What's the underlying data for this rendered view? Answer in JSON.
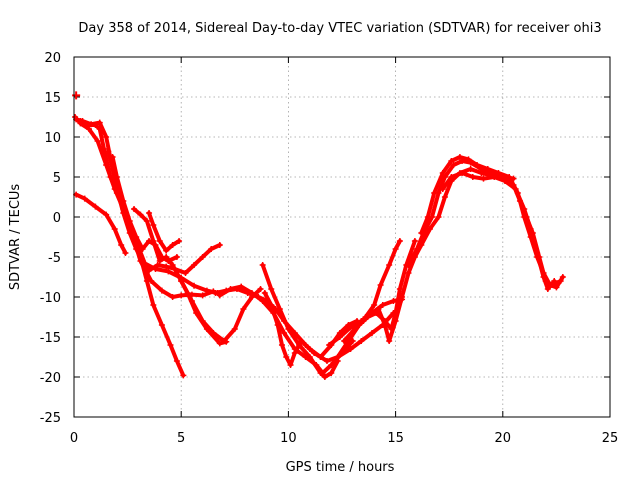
{
  "chart_data": {
    "type": "scatter",
    "title": "Day 358 of 2014, Sidereal Day-to-day VTEC variation (SDTVAR) for receiver ohi3",
    "xlabel": "GPS time / hours",
    "ylabel": "SDTVAR / TECUs",
    "xlim": [
      0,
      25
    ],
    "ylim": [
      -25,
      20
    ],
    "xticks": [
      0,
      5,
      10,
      15,
      20,
      25
    ],
    "yticks": [
      20,
      15,
      10,
      5,
      0,
      -5,
      -10,
      -15,
      -20,
      -25
    ],
    "xtick_labels": [
      "0",
      "5",
      "10",
      "15",
      "20",
      "25"
    ],
    "ytick_labels": [
      "20",
      "15",
      "10",
      "5",
      "0",
      "-5",
      "-10",
      "-15",
      "-20",
      "-25"
    ],
    "grid": true,
    "legend": "none",
    "marker_color": "#ff0000",
    "series": [
      {
        "name": "trace-1",
        "points": [
          [
            0.1,
            2.8
          ],
          [
            0.5,
            2.3
          ],
          [
            1.0,
            1.3
          ],
          [
            1.5,
            0.3
          ],
          [
            1.9,
            -1.5
          ],
          [
            2.2,
            -3.5
          ],
          [
            2.4,
            -4.5
          ]
        ]
      },
      {
        "name": "trace-2",
        "points": [
          [
            0.05,
            12.5
          ],
          [
            0.3,
            11.7
          ],
          [
            0.7,
            11.0
          ],
          [
            1.1,
            9.5
          ],
          [
            1.5,
            6.5
          ],
          [
            1.9,
            3.5
          ],
          [
            2.3,
            1.0
          ],
          [
            2.7,
            -2.0
          ],
          [
            3.1,
            -5.5
          ],
          [
            3.6,
            -8.0
          ],
          [
            4.1,
            -9.2
          ],
          [
            4.6,
            -10.0
          ],
          [
            5.0,
            -9.8
          ],
          [
            5.5,
            -9.7
          ],
          [
            6.0,
            -9.8
          ],
          [
            6.5,
            -9.3
          ]
        ]
      },
      {
        "name": "trace-3",
        "points": [
          [
            0.1,
            12.2
          ],
          [
            0.4,
            12.0
          ],
          [
            0.8,
            11.6
          ],
          [
            1.2,
            11.8
          ],
          [
            1.5,
            10.0
          ],
          [
            1.8,
            6.0
          ],
          [
            2.1,
            3.0
          ],
          [
            2.5,
            0.0
          ],
          [
            2.9,
            -3.0
          ],
          [
            3.3,
            -5.8
          ],
          [
            3.8,
            -6.5
          ],
          [
            4.4,
            -6.8
          ],
          [
            5.0,
            -7.6
          ],
          [
            5.6,
            -8.6
          ],
          [
            6.2,
            -9.2
          ],
          [
            6.7,
            -9.5
          ]
        ]
      },
      {
        "name": "trace-4",
        "points": [
          [
            0.3,
            12.0
          ],
          [
            0.6,
            11.5
          ],
          [
            1.0,
            11.5
          ],
          [
            1.2,
            11.0
          ],
          [
            1.4,
            8.5
          ],
          [
            1.7,
            5.0
          ],
          [
            2.0,
            3.0
          ],
          [
            2.4,
            0.5
          ],
          [
            2.8,
            -2.5
          ],
          [
            3.1,
            -5.0
          ],
          [
            3.4,
            -8.0
          ],
          [
            3.7,
            -11.0
          ],
          [
            4.1,
            -13.5
          ],
          [
            4.5,
            -16.0
          ],
          [
            4.8,
            -18.0
          ],
          [
            5.1,
            -19.8
          ]
        ]
      },
      {
        "name": "trace-5",
        "points": [
          [
            1.6,
            8.2
          ],
          [
            1.8,
            6.0
          ],
          [
            2.0,
            3.5
          ],
          [
            2.3,
            0.5
          ],
          [
            2.6,
            -2.0
          ],
          [
            2.9,
            -4.0
          ],
          [
            3.2,
            -5.5
          ],
          [
            3.5,
            -6.7
          ],
          [
            3.9,
            -6.0
          ],
          [
            4.3,
            -6.2
          ],
          [
            4.7,
            -6.5
          ],
          [
            5.2,
            -7.0
          ],
          [
            5.6,
            -6.0
          ],
          [
            6.0,
            -5.0
          ],
          [
            6.4,
            -4.0
          ],
          [
            6.8,
            -3.5
          ]
        ]
      },
      {
        "name": "trace-6",
        "points": [
          [
            1.8,
            7.5
          ],
          [
            2.0,
            5.0
          ],
          [
            2.3,
            2.0
          ],
          [
            2.6,
            -0.5
          ],
          [
            2.9,
            -2.5
          ],
          [
            3.2,
            -4.0
          ],
          [
            3.5,
            -3.0
          ],
          [
            3.8,
            -3.5
          ],
          [
            4.1,
            -5.0
          ],
          [
            4.4,
            -5.5
          ],
          [
            4.8,
            -5.0
          ]
        ]
      },
      {
        "name": "trace-7",
        "points": [
          [
            3.5,
            0.5
          ],
          [
            3.7,
            -1.0
          ],
          [
            4.0,
            -3.0
          ],
          [
            4.3,
            -4.2
          ],
          [
            4.6,
            -3.5
          ],
          [
            4.9,
            -3.0
          ]
        ]
      },
      {
        "name": "trace-8",
        "points": [
          [
            2.8,
            1.0
          ],
          [
            3.1,
            0.3
          ],
          [
            3.4,
            -0.5
          ],
          [
            3.7,
            -3.0
          ],
          [
            4.0,
            -5.5
          ],
          [
            4.3,
            -5.0
          ],
          [
            4.6,
            -6.0
          ],
          [
            5.0,
            -8.0
          ],
          [
            5.5,
            -10.5
          ],
          [
            6.0,
            -13.0
          ],
          [
            6.5,
            -14.5
          ],
          [
            7.0,
            -15.5
          ],
          [
            7.5,
            -14.0
          ],
          [
            7.9,
            -11.5
          ],
          [
            8.3,
            -10.0
          ],
          [
            8.7,
            -9.0
          ]
        ]
      },
      {
        "name": "trace-9",
        "points": [
          [
            5.0,
            -8.0
          ],
          [
            5.3,
            -9.5
          ],
          [
            5.7,
            -12.0
          ],
          [
            6.2,
            -14.0
          ],
          [
            6.8,
            -15.8
          ],
          [
            7.1,
            -15.6
          ]
        ]
      },
      {
        "name": "trace-10",
        "points": [
          [
            6.6,
            -9.5
          ],
          [
            7.1,
            -9.2
          ],
          [
            7.6,
            -9.0
          ],
          [
            8.1,
            -9.5
          ],
          [
            8.6,
            -10.0
          ],
          [
            9.0,
            -10.5
          ],
          [
            9.4,
            -11.5
          ],
          [
            9.8,
            -13.0
          ],
          [
            10.3,
            -14.5
          ],
          [
            10.8,
            -16.0
          ],
          [
            11.2,
            -17.0
          ],
          [
            11.5,
            -17.5
          ],
          [
            11.8,
            -18.0
          ],
          [
            12.3,
            -17.5
          ],
          [
            12.9,
            -16.5
          ],
          [
            13.4,
            -15.5
          ],
          [
            13.9,
            -14.5
          ],
          [
            14.4,
            -13.5
          ],
          [
            14.9,
            -12.0
          ]
        ]
      },
      {
        "name": "trace-11",
        "points": [
          [
            6.8,
            -9.8
          ],
          [
            7.3,
            -9.0
          ],
          [
            7.8,
            -8.7
          ],
          [
            8.3,
            -9.5
          ],
          [
            8.8,
            -10.5
          ],
          [
            9.3,
            -12.0
          ],
          [
            9.8,
            -14.5
          ],
          [
            10.3,
            -16.5
          ],
          [
            10.8,
            -17.5
          ],
          [
            11.3,
            -18.5
          ],
          [
            11.6,
            -19.5
          ],
          [
            12.0,
            -18.5
          ],
          [
            12.5,
            -17.0
          ],
          [
            13.0,
            -15.5
          ]
        ]
      },
      {
        "name": "trace-12",
        "points": [
          [
            8.8,
            -6.0
          ],
          [
            9.2,
            -9.0
          ],
          [
            9.6,
            -11.5
          ],
          [
            10.0,
            -14.0
          ],
          [
            10.5,
            -16.0
          ],
          [
            11.0,
            -17.5
          ],
          [
            11.5,
            -19.5
          ],
          [
            11.7,
            -20.0
          ],
          [
            12.0,
            -19.5
          ],
          [
            12.3,
            -18.0
          ]
        ]
      },
      {
        "name": "trace-13",
        "points": [
          [
            8.9,
            -9.5
          ],
          [
            9.2,
            -11.0
          ],
          [
            9.5,
            -13.5
          ],
          [
            9.7,
            -16.0
          ],
          [
            9.9,
            -17.5
          ],
          [
            10.1,
            -18.5
          ],
          [
            10.3,
            -17.0
          ],
          [
            10.6,
            -15.5
          ],
          [
            11.0,
            -16.5
          ],
          [
            11.5,
            -17.5
          ],
          [
            12.0,
            -16.0
          ],
          [
            12.4,
            -14.5
          ],
          [
            12.8,
            -13.5
          ],
          [
            13.2,
            -13.0
          ]
        ]
      },
      {
        "name": "trace-14",
        "points": [
          [
            11.9,
            -16.0
          ],
          [
            12.4,
            -15.0
          ],
          [
            12.9,
            -13.8
          ],
          [
            13.4,
            -13.0
          ],
          [
            13.9,
            -12.0
          ],
          [
            14.4,
            -11.0
          ],
          [
            14.9,
            -10.5
          ],
          [
            15.3,
            -10.3
          ]
        ]
      },
      {
        "name": "trace-15",
        "points": [
          [
            12.3,
            -17.5
          ],
          [
            12.8,
            -15.5
          ],
          [
            13.3,
            -13.5
          ],
          [
            13.7,
            -12.5
          ],
          [
            14.1,
            -12.0
          ],
          [
            14.5,
            -13.0
          ],
          [
            14.8,
            -14.0
          ],
          [
            15.0,
            -12.0
          ],
          [
            15.2,
            -9.0
          ],
          [
            15.5,
            -6.0
          ],
          [
            15.9,
            -3.0
          ]
        ]
      },
      {
        "name": "trace-16",
        "points": [
          [
            12.6,
            -15.5
          ],
          [
            13.1,
            -14.0
          ],
          [
            13.6,
            -12.5
          ],
          [
            14.0,
            -11.0
          ],
          [
            14.3,
            -8.5
          ],
          [
            14.7,
            -6.0
          ],
          [
            15.0,
            -4.0
          ],
          [
            15.2,
            -3.0
          ]
        ]
      },
      {
        "name": "trace-17",
        "points": [
          [
            13.5,
            -13.0
          ],
          [
            13.9,
            -12.0
          ],
          [
            14.2,
            -11.5
          ],
          [
            14.5,
            -13.5
          ],
          [
            14.7,
            -15.5
          ],
          [
            15.0,
            -13.0
          ],
          [
            15.3,
            -10.0
          ],
          [
            15.6,
            -7.0
          ],
          [
            15.9,
            -5.0
          ],
          [
            16.2,
            -3.5
          ],
          [
            16.6,
            -1.5
          ],
          [
            17.0,
            0.0
          ],
          [
            17.3,
            2.5
          ],
          [
            17.6,
            4.5
          ],
          [
            18.0,
            5.5
          ],
          [
            18.5,
            6.0
          ],
          [
            19.0,
            5.5
          ],
          [
            19.5,
            5.2
          ],
          [
            20.0,
            5.0
          ],
          [
            20.5,
            4.8
          ]
        ]
      },
      {
        "name": "trace-18",
        "points": [
          [
            15.6,
            -6.0
          ],
          [
            16.0,
            -4.0
          ],
          [
            16.3,
            -2.0
          ],
          [
            16.7,
            0.0
          ],
          [
            17.0,
            3.0
          ],
          [
            17.3,
            5.0
          ],
          [
            17.7,
            6.5
          ],
          [
            18.1,
            7.0
          ],
          [
            18.5,
            6.8
          ],
          [
            19.0,
            6.0
          ],
          [
            19.5,
            5.5
          ],
          [
            20.0,
            5.0
          ],
          [
            20.5,
            4.0
          ],
          [
            20.8,
            2.0
          ],
          [
            21.1,
            0.0
          ],
          [
            21.4,
            -2.0
          ],
          [
            21.7,
            -5.0
          ],
          [
            22.0,
            -8.0
          ],
          [
            22.3,
            -8.5
          ],
          [
            22.7,
            -8.0
          ]
        ]
      },
      {
        "name": "trace-19",
        "points": [
          [
            16.2,
            -2.0
          ],
          [
            16.5,
            0.0
          ],
          [
            16.8,
            3.0
          ],
          [
            17.2,
            5.5
          ],
          [
            17.6,
            7.0
          ],
          [
            18.0,
            7.5
          ],
          [
            18.4,
            7.2
          ],
          [
            18.8,
            6.5
          ],
          [
            19.3,
            6.0
          ],
          [
            19.8,
            5.5
          ],
          [
            20.3,
            5.0
          ],
          [
            20.7,
            3.0
          ],
          [
            21.0,
            0.0
          ],
          [
            21.3,
            -2.5
          ],
          [
            21.6,
            -5.0
          ],
          [
            21.9,
            -7.0
          ],
          [
            22.2,
            -8.5
          ],
          [
            22.5,
            -8.8
          ],
          [
            22.8,
            -7.5
          ]
        ]
      },
      {
        "name": "trace-20",
        "points": [
          [
            17.2,
            3.5
          ],
          [
            17.6,
            5.0
          ],
          [
            18.1,
            5.5
          ],
          [
            18.6,
            5.0
          ],
          [
            19.1,
            4.8
          ],
          [
            19.6,
            5.0
          ],
          [
            20.1,
            4.5
          ],
          [
            20.6,
            3.5
          ],
          [
            21.0,
            1.0
          ],
          [
            21.3,
            -1.5
          ],
          [
            21.6,
            -4.5
          ],
          [
            21.9,
            -7.5
          ],
          [
            22.1,
            -9.0
          ],
          [
            22.4,
            -8.0
          ]
        ]
      }
    ]
  }
}
